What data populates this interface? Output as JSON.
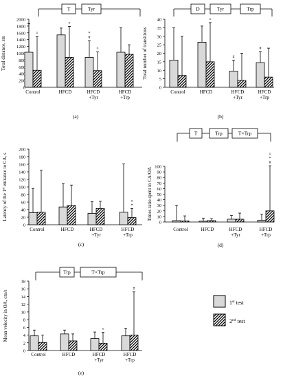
{
  "legend": {
    "entries": [
      {
        "label": "1st test",
        "base": "1",
        "sup": "st",
        "rest": " test",
        "pattern": "solid"
      },
      {
        "label": "2nd test",
        "base": "2",
        "sup": "nd",
        "rest": " test",
        "pattern": "hatch"
      }
    ],
    "fill_color": "#d9d9d9",
    "stroke_color": "#000000"
  },
  "chart_data": [
    {
      "type": "bar",
      "panel": "(a)",
      "ylabel": "Total distance, sm",
      "ylim": [
        0,
        2000
      ],
      "yticks": [
        0,
        200,
        400,
        600,
        800,
        1000,
        1200,
        1400,
        1600,
        1800,
        2000
      ],
      "categories": [
        [
          "Control"
        ],
        [
          "HFCD"
        ],
        [
          "HFCD",
          "+Tyr"
        ],
        [
          "HFCD",
          "+Trp"
        ]
      ],
      "series": [
        {
          "values": [
            1030,
            1540,
            880,
            1030
          ],
          "err_top": [
            1870,
            1740,
            1370,
            1750
          ]
        },
        {
          "values": [
            500,
            880,
            490,
            970
          ],
          "err_top": [
            1490,
            1790,
            1040,
            1250
          ]
        }
      ],
      "significance": [
        [
          "",
          "¤"
        ],
        [
          "",
          "¤"
        ],
        [
          "*#",
          "¤"
        ],
        [
          "",
          ""
        ]
      ],
      "effects": [
        {
          "labels": [
            "T",
            "Tyr"
          ]
        }
      ]
    },
    {
      "type": "bar",
      "panel": "(b)",
      "ylabel": "Total number of transitions",
      "ylim": [
        0,
        40
      ],
      "yticks": [
        0,
        5,
        10,
        15,
        20,
        25,
        30,
        35,
        40
      ],
      "categories": [
        [
          "Control"
        ],
        [
          "HFCD"
        ],
        [
          "HFCD",
          "+Tyr"
        ],
        [
          "HFCD",
          "+Trp"
        ]
      ],
      "series": [
        {
          "values": [
            16,
            26.5,
            9.5,
            14.5
          ],
          "err_top": [
            35,
            36,
            16,
            21
          ]
        },
        {
          "values": [
            7,
            15,
            4,
            6
          ],
          "err_top": [
            30,
            38,
            20,
            23
          ]
        }
      ],
      "significance": [
        [
          "",
          ""
        ],
        [
          "",
          "¤"
        ],
        [
          "#",
          ""
        ],
        [
          "#",
          ""
        ]
      ],
      "effects": [
        {
          "labels": [
            "D",
            "Tyr",
            "Trp"
          ]
        }
      ]
    },
    {
      "type": "bar",
      "panel": "(c)",
      "ylabel": "Latency of the 1st entrance to CA, s",
      "ylabel_parts": {
        "before": "Latency of the 1",
        "sup": "st",
        "after": " entrance to CA, s"
      },
      "ylim": [
        0,
        200
      ],
      "yticks": [
        0,
        20,
        40,
        60,
        80,
        100,
        120,
        140,
        160,
        180,
        200
      ],
      "categories": [
        [
          "Control"
        ],
        [
          "HFCD"
        ],
        [
          "HFCD",
          "+Tyr"
        ],
        [
          "HFCD",
          "+Trp"
        ]
      ],
      "series": [
        {
          "values": [
            32,
            47,
            30,
            33
          ],
          "err_top": [
            96,
            109,
            61,
            161
          ]
        },
        {
          "values": [
            33,
            51,
            43,
            19
          ],
          "err_top": [
            144,
            105,
            62,
            43
          ]
        }
      ],
      "significance": [
        [
          "",
          ""
        ],
        [
          "",
          ""
        ],
        [
          "",
          ""
        ],
        [
          "",
          "¤*"
        ]
      ],
      "effects": []
    },
    {
      "type": "bar",
      "panel": "(d)",
      "ylabel": "Times ratio spent in CA/OA",
      "ylim": [
        0,
        100
      ],
      "yticks": [
        0,
        10,
        20,
        30,
        40,
        50,
        60,
        70,
        80,
        90,
        100
      ],
      "categories": [
        [
          "Control"
        ],
        [
          "HFCD"
        ],
        [
          "HFCD",
          "+Tyr"
        ],
        [
          "HFCD",
          "+Trp"
        ]
      ],
      "series": [
        {
          "values": [
            2.5,
            1.5,
            5,
            3
          ],
          "err_top": [
            30,
            7,
            12,
            14
          ]
        },
        {
          "values": [
            2,
            2.5,
            5,
            20
          ],
          "err_top": [
            11,
            6,
            16,
            101
          ]
        }
      ],
      "significance": [
        [
          "",
          ""
        ],
        [
          "",
          ""
        ],
        [
          "",
          ""
        ],
        [
          "",
          "¤*#"
        ]
      ],
      "effects": [
        {
          "labels": [
            "T",
            "Trp",
            "T×Trp"
          ]
        }
      ]
    },
    {
      "type": "bar",
      "panel": "(e)",
      "ylabel": "Mean velocity in OA, cm/s",
      "ylim": [
        0,
        18
      ],
      "yticks": [
        0,
        2,
        4,
        6,
        8,
        10,
        12,
        14,
        16,
        18
      ],
      "categories": [
        [
          "Control"
        ],
        [
          "HFCD"
        ],
        [
          "HFCD",
          "+Tyr"
        ],
        [
          "HFCD",
          "+Trp"
        ]
      ],
      "series": [
        {
          "values": [
            3.8,
            4.3,
            3.1,
            3.8
          ],
          "err_top": [
            5.3,
            5.3,
            4.8,
            5.8
          ]
        },
        {
          "values": [
            2.1,
            2.5,
            1.9,
            4
          ],
          "err_top": [
            4,
            4.3,
            4.7,
            15.2
          ]
        }
      ],
      "significance": [
        [
          "",
          ""
        ],
        [
          "",
          ""
        ],
        [
          "",
          "¤"
        ],
        [
          "",
          "#"
        ]
      ],
      "effects": [
        {
          "labels": [
            "Trp",
            "T×Trp"
          ]
        }
      ]
    }
  ]
}
